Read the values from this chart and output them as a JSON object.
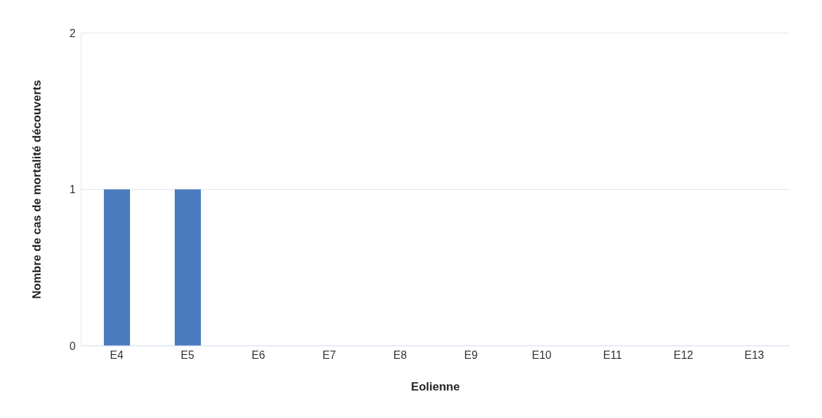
{
  "chart_data": {
    "type": "bar",
    "xlabel": "Eolienne",
    "ylabel": "Nombre de cas de mortalité découverts",
    "categories": [
      "E4",
      "E5",
      "E6",
      "E7",
      "E8",
      "E9",
      "E10",
      "E11",
      "E12",
      "E13"
    ],
    "values": [
      1,
      1,
      0,
      0,
      0,
      0,
      0,
      0,
      0,
      0
    ],
    "color": "#4a7bbf",
    "ylim": [
      0,
      2
    ],
    "yticks": [
      0,
      1,
      2
    ],
    "grid": "y"
  }
}
